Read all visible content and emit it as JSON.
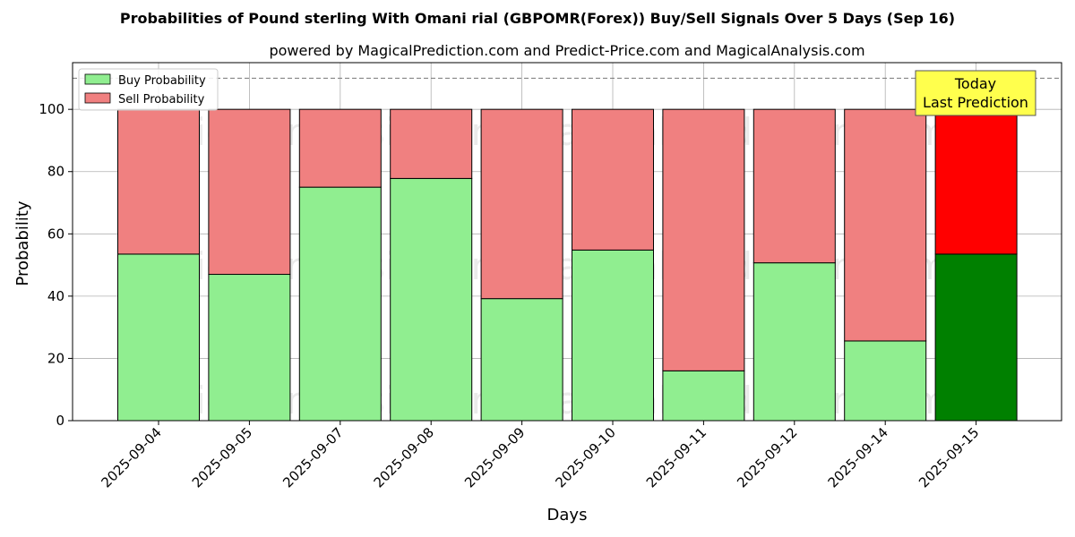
{
  "chart_data": {
    "type": "bar",
    "stacked": true,
    "title": "Probabilities of Pound sterling With Omani rial (GBPOMR(Forex)) Buy/Sell Signals Over 5 Days (Sep 16)",
    "subtitle": "powered by MagicalPrediction.com and Predict-Price.com and MagicalAnalysis.com",
    "xlabel": "Days",
    "ylabel": "Probability",
    "ylim": [
      0,
      115
    ],
    "yticks": [
      0,
      20,
      40,
      60,
      80,
      100
    ],
    "threshold_line": 110,
    "grid": true,
    "legend_position": "top-left",
    "categories": [
      "2025-09-04",
      "2025-09-05",
      "2025-09-07",
      "2025-09-08",
      "2025-09-09",
      "2025-09-10",
      "2025-09-11",
      "2025-09-12",
      "2025-09-14",
      "2025-09-15"
    ],
    "series": [
      {
        "name": "Buy Probability",
        "color": "#90ee90",
        "highlight_color": "#008000",
        "values": [
          53.5,
          47,
          75,
          77.8,
          39.2,
          54.8,
          16,
          50.7,
          25.6,
          53.5
        ]
      },
      {
        "name": "Sell Probability",
        "color": "#f08080",
        "highlight_color": "#ff0000",
        "values": [
          46.5,
          53,
          25,
          22.2,
          60.8,
          45.2,
          84,
          49.3,
          74.4,
          46.5
        ]
      }
    ],
    "highlight_index": 9,
    "annotation": {
      "line1": "Today",
      "line2": "Last Prediction",
      "color": "#ffff4d"
    },
    "watermarks": [
      "MagicalAnalysis.com",
      "MagicalPrediction.com"
    ]
  }
}
